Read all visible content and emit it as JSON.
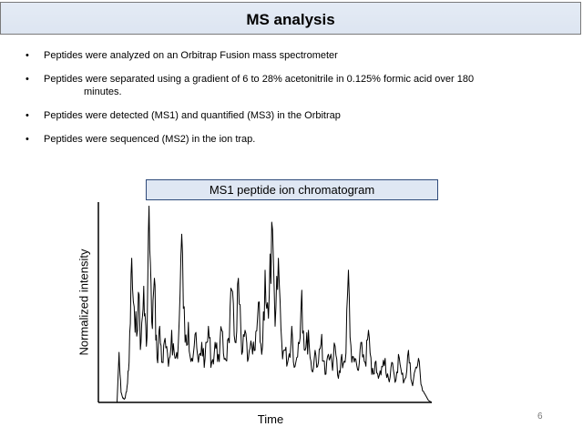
{
  "slide": {
    "title": "MS analysis",
    "bullets": [
      {
        "text": "Peptides were analyzed on an Orbitrap Fusion mass spectrometer"
      },
      {
        "text": "Peptides were separated using a gradient of 6 to 28% acetonitrile in 0.125% formic acid over 180",
        "continuation": "minutes."
      },
      {
        "text": "Peptides were detected (MS1) and quantified (MS3) in the Orbitrap"
      },
      {
        "text": "Peptides were sequenced (MS2) in the ion trap."
      }
    ],
    "bullet_glyph": "•",
    "page_number": "6"
  },
  "chart_data": {
    "type": "line",
    "title": "MS1 peptide ion chromatogram",
    "xlabel": "Time",
    "ylabel": "Normalized intensity",
    "x_ticks": [],
    "y_ticks": [],
    "xlim": [
      0,
      100
    ],
    "ylim": [
      0,
      1
    ],
    "grid": false,
    "legend": "none",
    "line_color": "#000000",
    "series": [
      {
        "x": [
          0,
          5.6,
          6.2,
          6.8,
          7.4,
          8,
          8.6,
          9.2,
          10,
          11,
          12,
          12.8,
          13.6,
          14.4,
          15.2,
          16,
          16.8,
          17.6,
          18.4,
          19.2,
          20,
          21,
          22,
          23,
          24,
          25,
          26,
          27,
          28,
          29,
          30,
          31,
          32,
          33,
          34,
          35,
          36,
          37,
          38,
          39,
          40,
          41,
          42,
          43,
          44,
          45,
          46,
          47,
          48,
          49,
          50,
          51,
          52,
          53,
          54,
          55,
          56,
          57,
          58,
          59,
          60,
          61,
          62,
          63,
          64,
          65,
          66,
          67,
          68,
          69,
          70,
          71,
          72,
          73,
          74,
          75,
          76,
          77,
          78,
          79,
          80,
          81,
          82,
          83,
          84,
          85,
          86,
          87,
          88,
          89,
          90,
          91,
          92,
          93,
          94,
          95,
          96,
          97,
          98,
          99,
          100
        ],
        "y": [
          0,
          0,
          0.25,
          0.05,
          0.02,
          0.02,
          0.08,
          0.2,
          0.72,
          0.35,
          0.55,
          0.3,
          0.58,
          0.28,
          0.98,
          0.4,
          0.62,
          0.22,
          0.38,
          0.2,
          0.32,
          0.18,
          0.36,
          0.22,
          0.3,
          0.84,
          0.3,
          0.4,
          0.22,
          0.34,
          0.2,
          0.3,
          0.22,
          0.38,
          0.2,
          0.3,
          0.24,
          0.36,
          0.22,
          0.32,
          0.56,
          0.3,
          0.62,
          0.24,
          0.36,
          0.22,
          0.28,
          0.26,
          0.5,
          0.24,
          0.66,
          0.42,
          0.9,
          0.38,
          0.72,
          0.3,
          0.26,
          0.22,
          0.38,
          0.18,
          0.3,
          0.56,
          0.26,
          0.36,
          0.16,
          0.26,
          0.2,
          0.34,
          0.14,
          0.24,
          0.2,
          0.28,
          0.12,
          0.24,
          0.2,
          0.66,
          0.2,
          0.22,
          0.16,
          0.3,
          0.2,
          0.36,
          0.14,
          0.2,
          0.12,
          0.18,
          0.22,
          0.12,
          0.2,
          0.1,
          0.24,
          0.14,
          0.12,
          0.26,
          0.1,
          0.16,
          0.22,
          0.08,
          0.04,
          0.01,
          0
        ]
      }
    ]
  }
}
